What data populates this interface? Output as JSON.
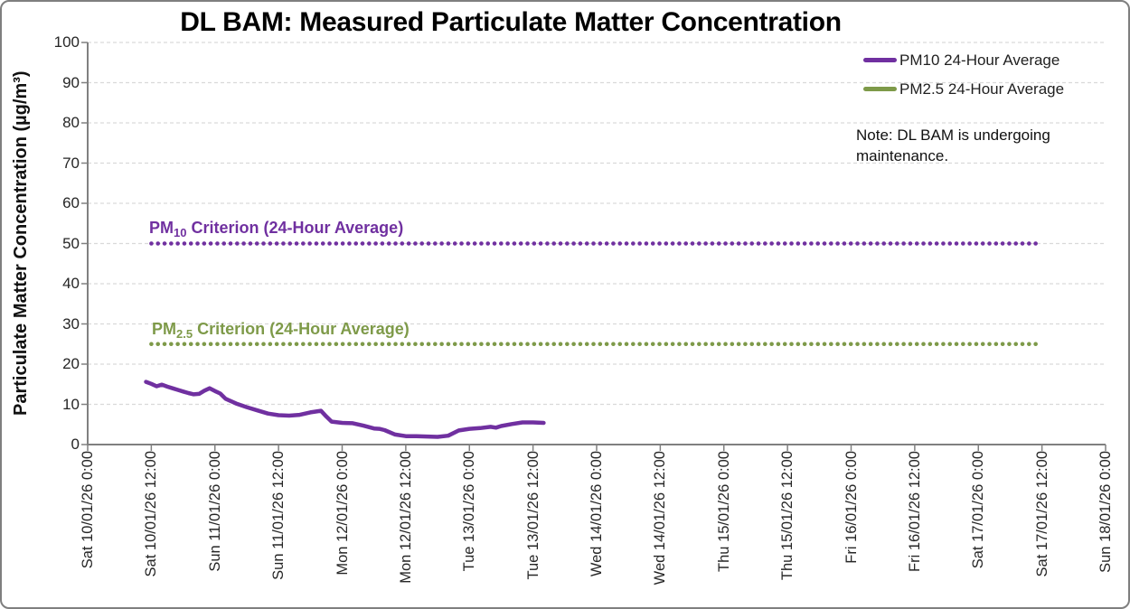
{
  "note": {
    "line1": "Note: DL BAM is undergoing",
    "line2": "maintenance."
  },
  "annotations": {
    "pm10_criterion": {
      "prefix": "PM",
      "sub": "10",
      "rest": " Criterion (24-Hour Average)"
    },
    "pm25_criterion": {
      "prefix": "PM",
      "sub": "2.5",
      "rest": " Criterion (24-Hour Average)"
    }
  },
  "legend": {
    "items": [
      {
        "label": "PM10 24-Hour Average",
        "color": "#7030A0"
      },
      {
        "label": "PM2.5 24-Hour Average",
        "color": "#7E9A49"
      }
    ]
  },
  "chart_data": {
    "type": "line",
    "title": "DL BAM: Measured Particulate Matter Concentration",
    "xlabel": "",
    "ylabel": "Particulate Matter Concentration (µg/m³)",
    "ylim": [
      0,
      100
    ],
    "ytick_step": 10,
    "grid": "horizontal-dashed",
    "legend_position": "top-right",
    "x_unit": "hours since Sat 10/01/26 0:00",
    "x_tick_interval_hours": 12,
    "x_tick_labels": [
      "Sat 10/01/26 0:00",
      "Sat 10/01/26 12:00",
      "Sun 11/01/26 0:00",
      "Sun 11/01/26 12:00",
      "Mon 12/01/26 0:00",
      "Mon 12/01/26 12:00",
      "Tue 13/01/26 0:00",
      "Tue 13/01/26 12:00",
      "Wed 14/01/26 0:00",
      "Wed 14/01/26 12:00",
      "Thu 15/01/26 0:00",
      "Thu 15/01/26 12:00",
      "Fri 16/01/26 0:00",
      "Fri 16/01/26 12:00",
      "Sat 17/01/26 0:00",
      "Sat 17/01/26 12:00",
      "Sun 18/01/26 0:00"
    ],
    "colors": {
      "grid": "#D9D9D9",
      "axis": "#808080",
      "text": "#262626"
    },
    "series": [
      {
        "name": "PM10 24-Hour Average",
        "id": "pm10-series",
        "color": "#7030A0",
        "style": "solid",
        "points": [
          [
            11,
            15.6
          ],
          [
            12,
            15.1
          ],
          [
            13,
            14.5
          ],
          [
            14,
            14.9
          ],
          [
            15,
            14.4
          ],
          [
            16,
            14.0
          ],
          [
            17,
            13.6
          ],
          [
            18,
            13.2
          ],
          [
            19,
            12.8
          ],
          [
            20,
            12.5
          ],
          [
            21,
            12.6
          ],
          [
            22,
            13.4
          ],
          [
            23,
            14.0
          ],
          [
            24,
            13.3
          ],
          [
            25,
            12.7
          ],
          [
            26,
            11.4
          ],
          [
            28,
            10.2
          ],
          [
            30,
            9.3
          ],
          [
            32,
            8.5
          ],
          [
            34,
            7.7
          ],
          [
            36,
            7.3
          ],
          [
            38,
            7.2
          ],
          [
            40,
            7.4
          ],
          [
            42,
            8.0
          ],
          [
            44,
            8.4
          ],
          [
            45,
            7.0
          ],
          [
            46,
            5.7
          ],
          [
            48,
            5.4
          ],
          [
            50,
            5.3
          ],
          [
            52,
            4.7
          ],
          [
            54,
            4.0
          ],
          [
            55,
            3.9
          ],
          [
            56,
            3.6
          ],
          [
            58,
            2.5
          ],
          [
            60,
            2.1
          ],
          [
            62,
            2.1
          ],
          [
            64,
            2.0
          ],
          [
            66,
            1.9
          ],
          [
            68,
            2.2
          ],
          [
            70,
            3.5
          ],
          [
            72,
            3.9
          ],
          [
            74,
            4.1
          ],
          [
            76,
            4.4
          ],
          [
            77,
            4.2
          ],
          [
            78,
            4.6
          ],
          [
            80,
            5.1
          ],
          [
            82,
            5.5
          ],
          [
            84,
            5.5
          ],
          [
            86,
            5.4
          ]
        ]
      },
      {
        "name": "PM2.5 24-Hour Average",
        "id": "pm25-series",
        "color": "#7E9A49",
        "style": "solid",
        "points": []
      }
    ],
    "reference_lines": [
      {
        "id": "pm10-criterion",
        "label": "PM10 Criterion (24-Hour Average)",
        "value": 50,
        "color": "#7030A0",
        "style": "dotted",
        "span_hours": [
          12,
          180
        ]
      },
      {
        "id": "pm25-criterion",
        "label": "PM2.5 Criterion (24-Hour Average)",
        "value": 25,
        "color": "#7E9A49",
        "style": "dotted",
        "span_hours": [
          12,
          180
        ]
      }
    ]
  }
}
